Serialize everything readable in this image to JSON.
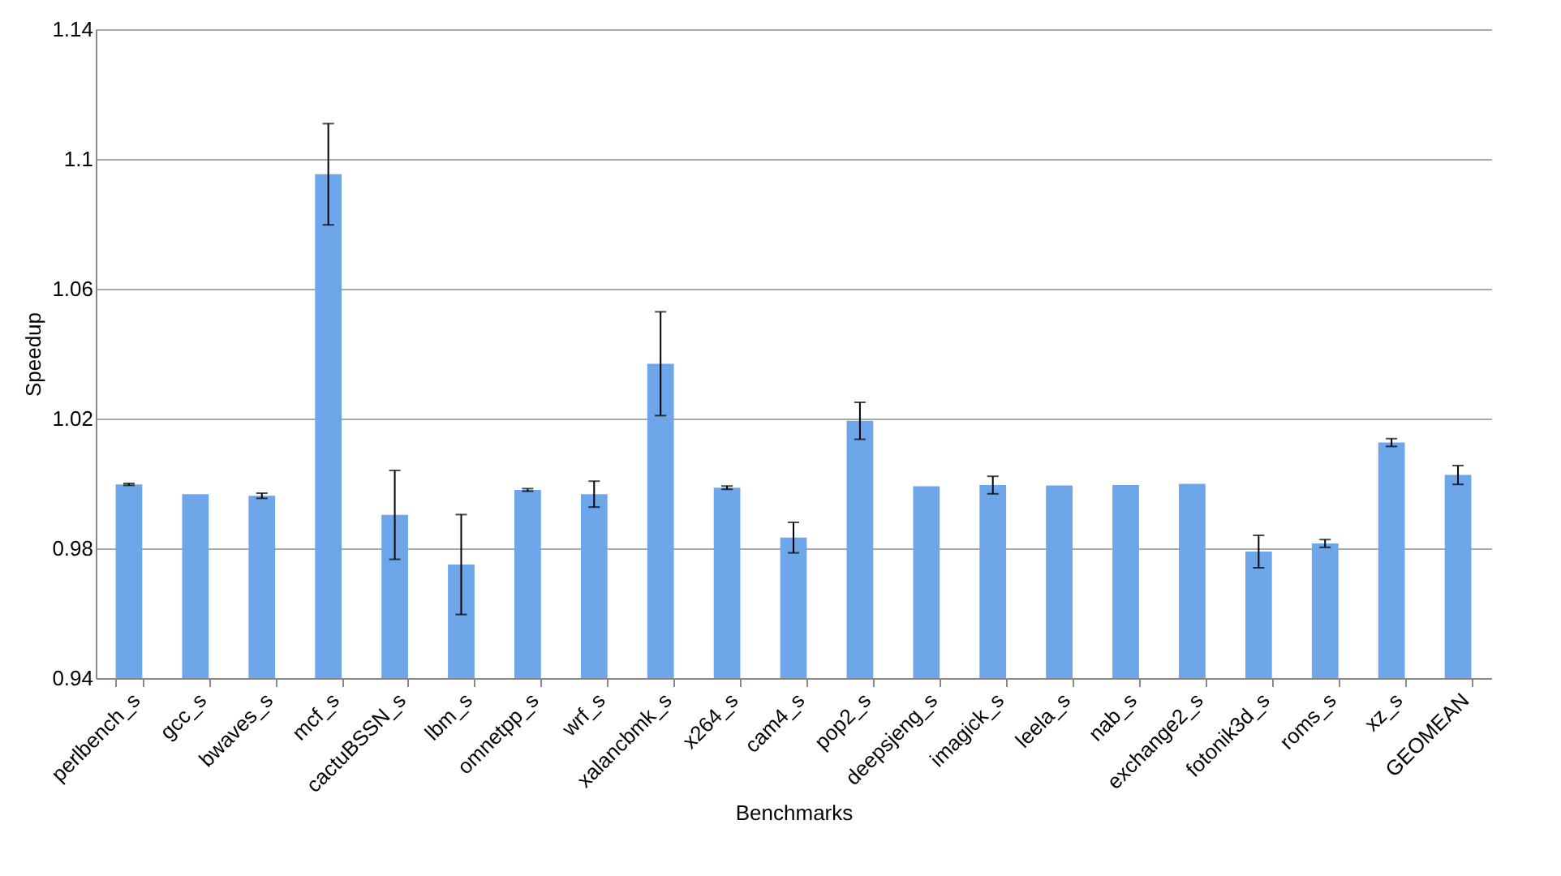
{
  "chart_data": {
    "type": "bar",
    "xlabel": "Benchmarks",
    "ylabel": "Speedup",
    "categories": [
      "perlbench_s",
      "gcc_s",
      "bwaves_s",
      "mcf_s",
      "cactuBSSN_s",
      "lbm_s",
      "omnetpp_s",
      "wrf_s",
      "xalancbmk_s",
      "x264_s",
      "cam4_s",
      "pop2_s",
      "deepsjeng_s",
      "imagick_s",
      "leela_s",
      "nab_s",
      "exchange2_s",
      "fotonik3d_s",
      "roms_s",
      "xz_s",
      "GEOMEAN"
    ],
    "values": [
      0.9997,
      0.9967,
      0.9962,
      1.0953,
      0.9903,
      0.975,
      0.998,
      0.9967,
      1.0369,
      0.9987,
      0.9833,
      1.0193,
      0.9991,
      0.9995,
      0.9994,
      0.9995,
      0.9999,
      0.979,
      0.9815,
      1.0126,
      1.0026
    ],
    "errors": [
      0.0003,
      null,
      0.0008,
      0.0156,
      0.0137,
      0.0154,
      0.0004,
      0.004,
      0.016,
      0.0005,
      0.0047,
      0.0057,
      null,
      0.0027,
      null,
      null,
      null,
      0.005,
      0.0012,
      0.0012,
      0.0029
    ],
    "color": "#6ea6ea",
    "ylim": [
      0.94,
      1.14
    ],
    "yticks": [
      0.94,
      0.98,
      1.02,
      1.06,
      1.1,
      1.14
    ],
    "grid": "y"
  }
}
